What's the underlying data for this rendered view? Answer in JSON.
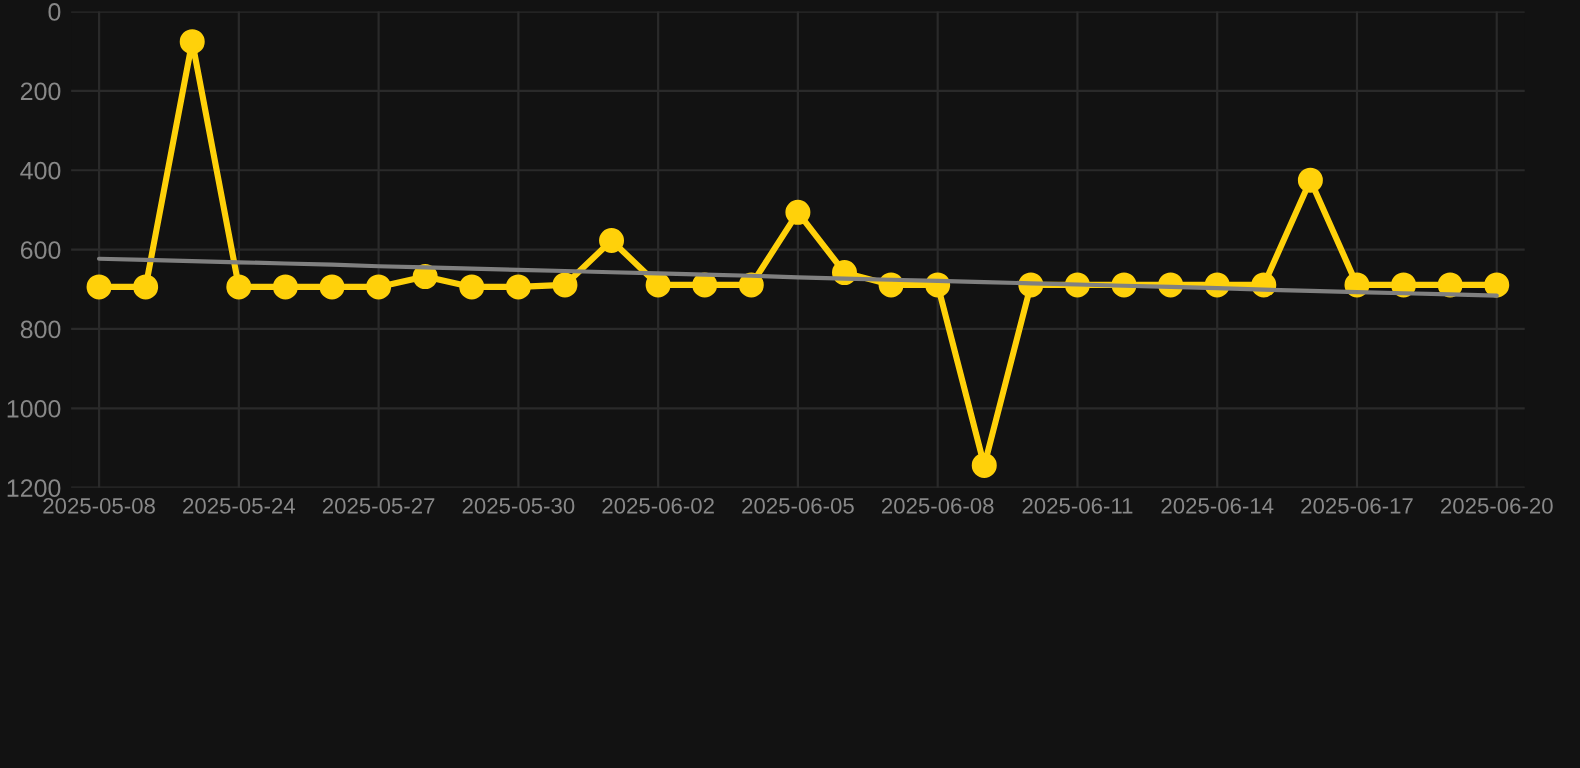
{
  "chart_data": {
    "type": "line",
    "categories": [
      "2025-05-08",
      null,
      null,
      "2025-05-24",
      null,
      null,
      "2025-05-27",
      null,
      null,
      "2025-05-30",
      null,
      null,
      "2025-06-02",
      null,
      null,
      "2025-06-05",
      null,
      null,
      "2025-06-08",
      null,
      null,
      "2025-06-11",
      null,
      null,
      "2025-06-14",
      null,
      null,
      "2025-06-17",
      null,
      null,
      "2025-06-20"
    ],
    "series": [
      {
        "color": "#ffd10a",
        "marker": "circle",
        "values": [
          694,
          694,
          76,
          694,
          694,
          694,
          694,
          668,
          694,
          694,
          689,
          577,
          689,
          689,
          689,
          506,
          658,
          689,
          689,
          1144,
          689,
          689,
          689,
          689,
          689,
          689,
          425,
          689,
          689,
          689,
          689
        ]
      },
      {
        "color": "#808080",
        "marker": "none",
        "values": [
          623,
          626,
          629,
          632,
          635,
          638,
          642,
          645,
          648,
          651,
          654,
          657,
          660,
          663,
          666,
          670,
          673,
          676,
          679,
          682,
          685,
          688,
          691,
          694,
          697,
          701,
          704,
          707,
          710,
          713,
          716
        ]
      }
    ],
    "ylim": [
      1200,
      0
    ],
    "yticks": [
      0,
      200,
      400,
      600,
      800,
      1000,
      1200
    ],
    "grid": true
  }
}
